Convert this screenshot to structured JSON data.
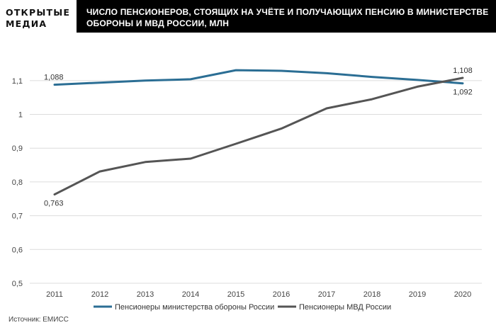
{
  "brand": {
    "line1": "ОТКРЫТЫЕ",
    "line2": "МЕДИА"
  },
  "title": "ЧИСЛО ПЕНСИОНЕРОВ, СТОЯЩИХ НА УЧЁТЕ И ПОЛУЧАЮЩИХ ПЕНСИЮ В МИНИСТЕРСТВЕ ОБОРОНЫ И МВД РОССИИ, МЛН",
  "source": "Источник: ЕМИСС",
  "chart_data": {
    "type": "line",
    "x": [
      2011,
      2012,
      2013,
      2014,
      2015,
      2016,
      2017,
      2018,
      2019,
      2020
    ],
    "ylim": [
      0.5,
      1.15
    ],
    "yticks": [
      0.5,
      0.6,
      0.7,
      0.8,
      0.9,
      1.0,
      1.1
    ],
    "ytick_labels": [
      "0,5",
      "0,6",
      "0,7",
      "0,8",
      "0,9",
      "1",
      "1,1"
    ],
    "grid": true,
    "legend_position": "bottom",
    "series": [
      {
        "name": "Пенсионеры министерства обороны России",
        "color": "#2b6e94",
        "values": [
          1.088,
          1.094,
          1.1,
          1.104,
          1.131,
          1.129,
          1.122,
          1.111,
          1.102,
          1.092
        ],
        "labels": [
          {
            "index": 0,
            "text": "1,088",
            "pos": "above"
          },
          {
            "index": 9,
            "text": "1,092",
            "pos": "below"
          }
        ]
      },
      {
        "name": "Пенсионеры МВД России",
        "color": "#555555",
        "values": [
          0.763,
          0.831,
          0.859,
          0.869,
          0.913,
          0.958,
          1.018,
          1.045,
          1.082,
          1.108
        ],
        "labels": [
          {
            "index": 0,
            "text": "0,763",
            "pos": "below"
          },
          {
            "index": 9,
            "text": "1,108",
            "pos": "above"
          }
        ]
      }
    ]
  }
}
